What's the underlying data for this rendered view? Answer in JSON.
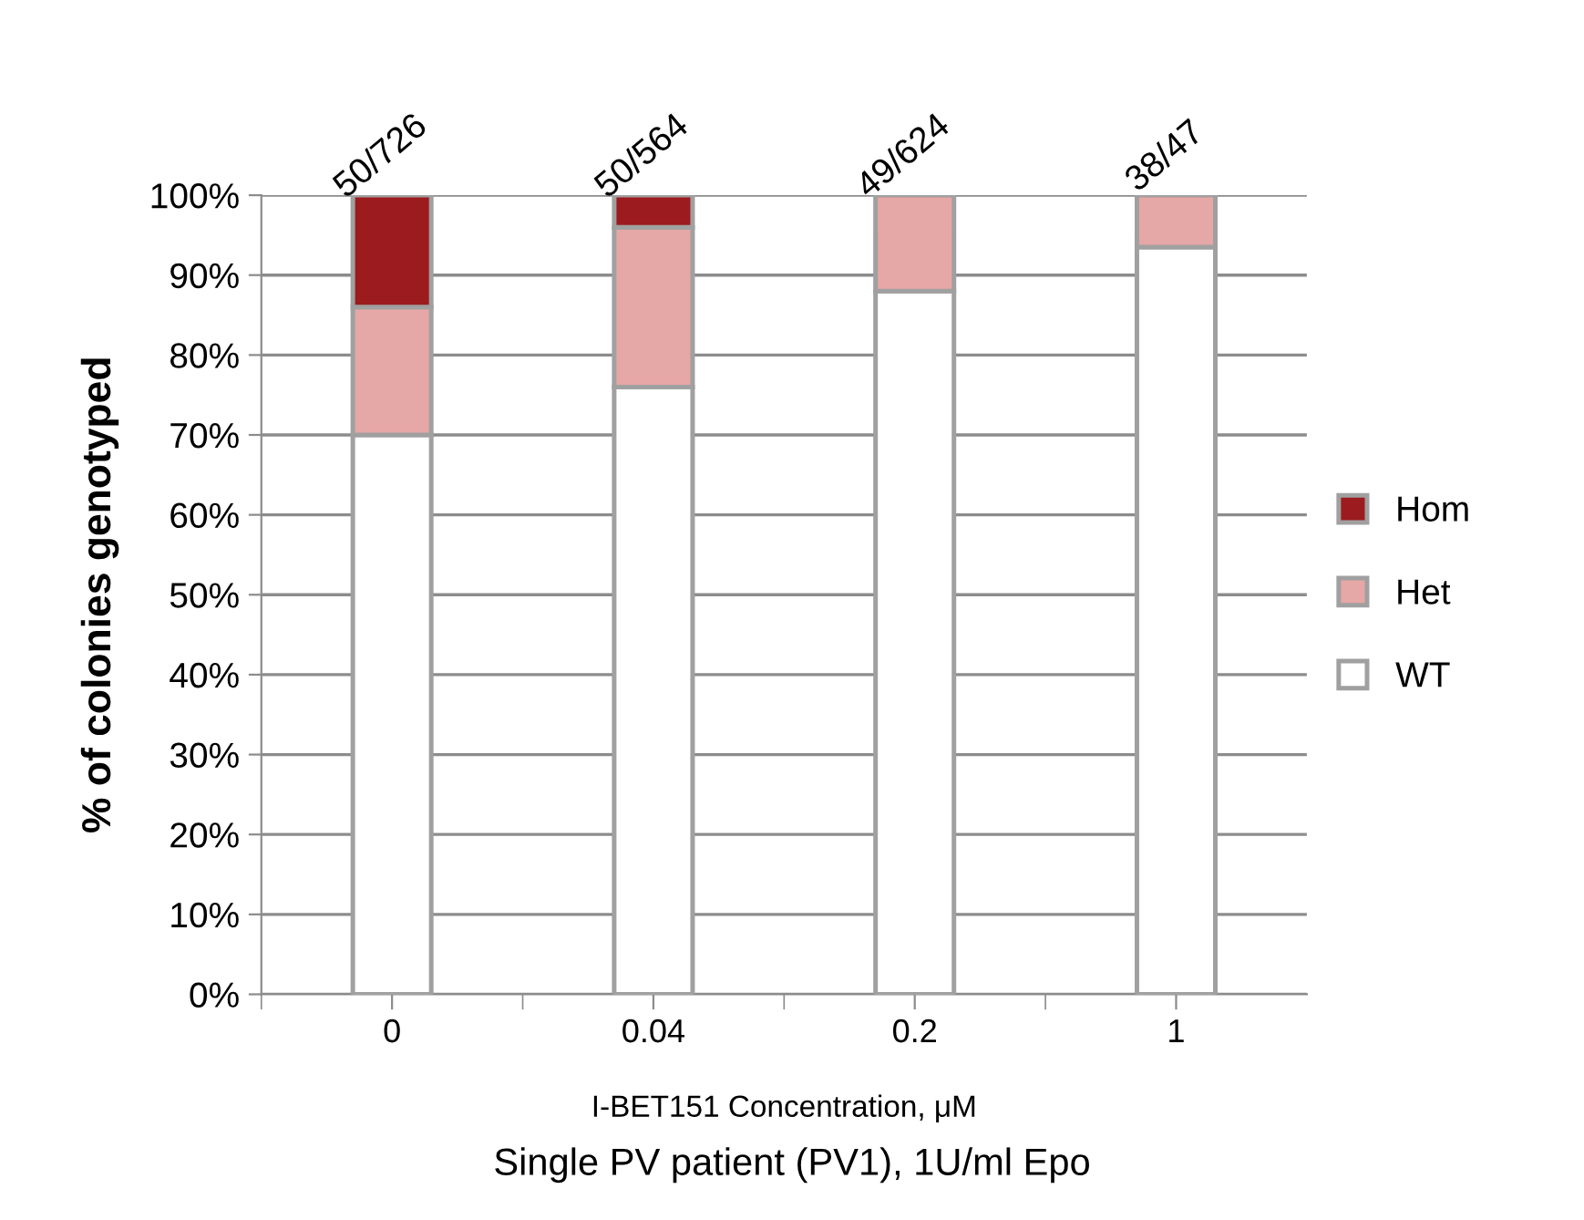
{
  "chart_data": {
    "type": "bar",
    "stacked": true,
    "categories": [
      "0",
      "0.04",
      "0.2",
      "1"
    ],
    "series": [
      {
        "name": "WT",
        "color": "#ffffff",
        "values": [
          70,
          76,
          88,
          93.5
        ]
      },
      {
        "name": "Het",
        "color": "#e6a7a7",
        "values": [
          16,
          20,
          12,
          6.5
        ]
      },
      {
        "name": "Hom",
        "color": "#9b1b1e",
        "values": [
          14,
          4,
          null,
          null
        ]
      }
    ],
    "ylim": [
      0,
      100
    ],
    "yticks": [
      {
        "value": 0,
        "label": "0%"
      },
      {
        "value": 10,
        "label": "10%"
      },
      {
        "value": 20,
        "label": "20%"
      },
      {
        "value": 30,
        "label": "30%"
      },
      {
        "value": 40,
        "label": "40%"
      },
      {
        "value": 50,
        "label": "50%"
      },
      {
        "value": 60,
        "label": "60%"
      },
      {
        "value": 70,
        "label": "70%"
      },
      {
        "value": 80,
        "label": "80%"
      },
      {
        "value": 90,
        "label": "90%"
      },
      {
        "value": 100,
        "label": "100%"
      }
    ],
    "ylabel": "% of colonies genotyped",
    "xlabel": "I-BET151 Concentration, μM",
    "annotations": [
      {
        "text": "50/726",
        "x": "0",
        "y": 100
      },
      {
        "text": "50/564",
        "x": "0.04",
        "y": 100
      },
      {
        "text": "49/624",
        "x": "0.2",
        "y": 100
      },
      {
        "text": "38/47",
        "x": "1",
        "y": 100
      },
      "Single PV patient (PV1), 1U/ml Epo"
    ],
    "grid": "y",
    "legend": "right"
  }
}
